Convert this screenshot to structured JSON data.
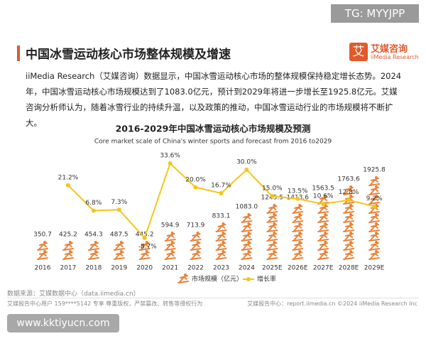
{
  "watermark_top": "TG: MYYJPP",
  "header": {
    "title": "中国冰雪运动核心市场整体规模及增速",
    "logo_cn": "艾媒咨询",
    "logo_en": "iiMedia Research",
    "logo_icon": "艾"
  },
  "paragraph": "iiMedia Research（艾媒咨询）数据显示，中国冰雪运动核心市场的整体规模保持稳定增长态势。2024年，中国冰雪运动核心市场规模达到了1083.0亿元，预计到2029年将进一步增长至1925.8亿元。艾媒咨询分析师认为，随着冰雪行业的持续升温，以及政策的推动，中国冰雪运动行业的市场规模将不断扩大。",
  "chart_data": {
    "type": "bar-line",
    "title": "2016-2029年中国冰雪运动核心市场规模及预测",
    "subtitle": "Core market scale of China's winter sports and forecast from 2016 to2029",
    "categories": [
      "2016",
      "2017",
      "2018",
      "2019",
      "2020",
      "2021",
      "2022",
      "2023",
      "2024",
      "2025E",
      "2026E",
      "2027E",
      "2028E",
      "2029E"
    ],
    "series": [
      {
        "name": "市场规模（亿元）",
        "color": "#e8833a",
        "type": "bar",
        "values": [
          350.7,
          425.2,
          454.3,
          487.5,
          445.2,
          594.9,
          713.9,
          833.1,
          1083.0,
          1245.5,
          1413.6,
          1563.5,
          1763.6,
          1925.8
        ],
        "value_labels": [
          "350.7",
          "425.2",
          "454.3",
          "487.5",
          "445.2",
          "594.9",
          "713.9",
          "833.1",
          "1083.0",
          "1245.5",
          "1413.6",
          "1563.5",
          "1763.6",
          "1925.8"
        ]
      },
      {
        "name": "增长率",
        "color": "#f5c518",
        "type": "line",
        "values": [
          null,
          21.2,
          6.8,
          7.3,
          -8.7,
          33.6,
          20.0,
          16.7,
          30.0,
          15.0,
          13.5,
          10.6,
          12.8,
          9.2
        ],
        "value_labels": [
          null,
          "21.2%",
          "6.8%",
          "7.3%",
          "-8.7%",
          "33.6%",
          "20.0%",
          "16.7%",
          "30.0%",
          "15.0%",
          "13.5%",
          "10.6%",
          "12.8%",
          "9.2%"
        ]
      }
    ]
  },
  "source": "数据来源：艾媒数据中心（data.iimedia.cn）",
  "footer_left": "艾媒报告中心用户 159****5142 专享 尊重版权，严禁篡改、转售等侵权行为",
  "footer_right": "艾媒报告中心：report.iimedia.cn  ©2024  iiMedia Research  Inc",
  "watermark_bottom": "www.kktiyucn.com"
}
